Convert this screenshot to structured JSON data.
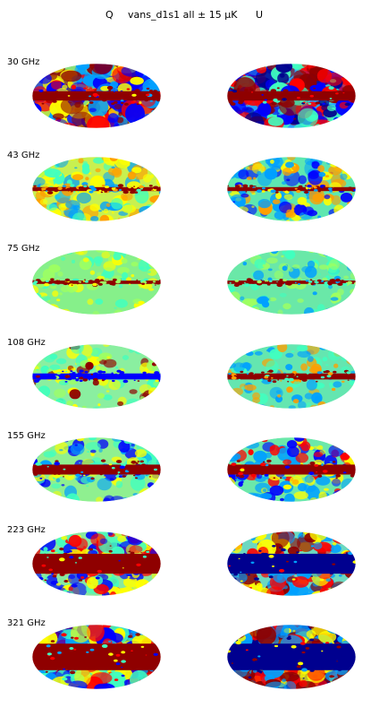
{
  "header": {
    "q_label": "Q",
    "title": "vans_d1s1 all ± 15 µK",
    "u_label": "U"
  },
  "colormap": [
    "#00008f",
    "#0000ff",
    "#00a0ff",
    "#40ffbf",
    "#9fff60",
    "#ffff00",
    "#ff9f00",
    "#ff0000",
    "#8f0000"
  ],
  "rows": [
    {
      "freq": "30 GHz",
      "q": {
        "background": "#8adf7a",
        "band": "#8f0000",
        "band_width": 0.14,
        "patches": [
          "#8f0000",
          "#ff0000",
          "#0000ff",
          "#00a0ff",
          "#ffff00"
        ],
        "intensity": 0.95
      },
      "u": {
        "background": "#2aa2ff",
        "band": "#8f0000",
        "band_width": 0.14,
        "patches": [
          "#00008f",
          "#0000ff",
          "#8f0000",
          "#ff0000",
          "#40ffbf"
        ],
        "intensity": 0.95
      }
    },
    {
      "freq": "43 GHz",
      "q": {
        "background": "#c8f050",
        "band": "#8f0000",
        "band_width": 0.06,
        "patches": [
          "#ffff00",
          "#ff9f00",
          "#40ffbf",
          "#00a0ff"
        ],
        "intensity": 0.55
      },
      "u": {
        "background": "#5ee7b0",
        "band": "#8f0000",
        "band_width": 0.06,
        "patches": [
          "#00a0ff",
          "#0000ff",
          "#ffff00",
          "#ff9f00"
        ],
        "intensity": 0.55
      }
    },
    {
      "freq": "75 GHz",
      "q": {
        "background": "#86f08a",
        "band": "#8f0000",
        "band_width": 0.05,
        "patches": [
          "#9fff60",
          "#40ffbf",
          "#ffff00"
        ],
        "intensity": 0.3
      },
      "u": {
        "background": "#6ae8a8",
        "band": "#8f0000",
        "band_width": 0.05,
        "patches": [
          "#40ffbf",
          "#00a0ff",
          "#9fff60"
        ],
        "intensity": 0.3
      }
    },
    {
      "freq": "108 GHz",
      "q": {
        "background": "#8aefa0",
        "band": "#0000ff",
        "band_width": 0.09,
        "patches": [
          "#9fff60",
          "#40ffbf",
          "#ffff00",
          "#8f0000"
        ],
        "intensity": 0.35
      },
      "u": {
        "background": "#64e6b0",
        "band": "#8f0000",
        "band_width": 0.09,
        "patches": [
          "#40ffbf",
          "#00a0ff",
          "#ff9f00"
        ],
        "intensity": 0.35
      }
    },
    {
      "freq": "155 GHz",
      "q": {
        "background": "#8ff090",
        "band": "#8f0000",
        "band_width": 0.15,
        "patches": [
          "#00a0ff",
          "#40ffbf",
          "#ffff00",
          "#0000ff"
        ],
        "intensity": 0.45
      },
      "u": {
        "background": "#6be8aa",
        "band": "#8f0000",
        "band_width": 0.15,
        "patches": [
          "#0000ff",
          "#00a0ff",
          "#ffff00",
          "#ff0000"
        ],
        "intensity": 0.45
      }
    },
    {
      "freq": "223 GHz",
      "q": {
        "background": "#88e8a0",
        "band": "#8f0000",
        "band_width": 0.3,
        "patches": [
          "#ff0000",
          "#0000ff",
          "#ffff00",
          "#40ffbf"
        ],
        "intensity": 0.7
      },
      "u": {
        "background": "#6cd8c0",
        "band": "#00008f",
        "band_width": 0.3,
        "patches": [
          "#8f0000",
          "#ff0000",
          "#00a0ff",
          "#ffff00"
        ],
        "intensity": 0.7
      }
    },
    {
      "freq": "321 GHz",
      "q": {
        "background": "#8f0000",
        "band": "#8f0000",
        "band_width": 0.4,
        "patches": [
          "#0000ff",
          "#00a0ff",
          "#ffff00",
          "#ff0000",
          "#40ffbf"
        ],
        "intensity": 0.95
      },
      "u": {
        "background": "#00008f",
        "band": "#00008f",
        "band_width": 0.4,
        "patches": [
          "#8f0000",
          "#ff0000",
          "#00a0ff",
          "#ffff00"
        ],
        "intensity": 0.95
      }
    }
  ]
}
